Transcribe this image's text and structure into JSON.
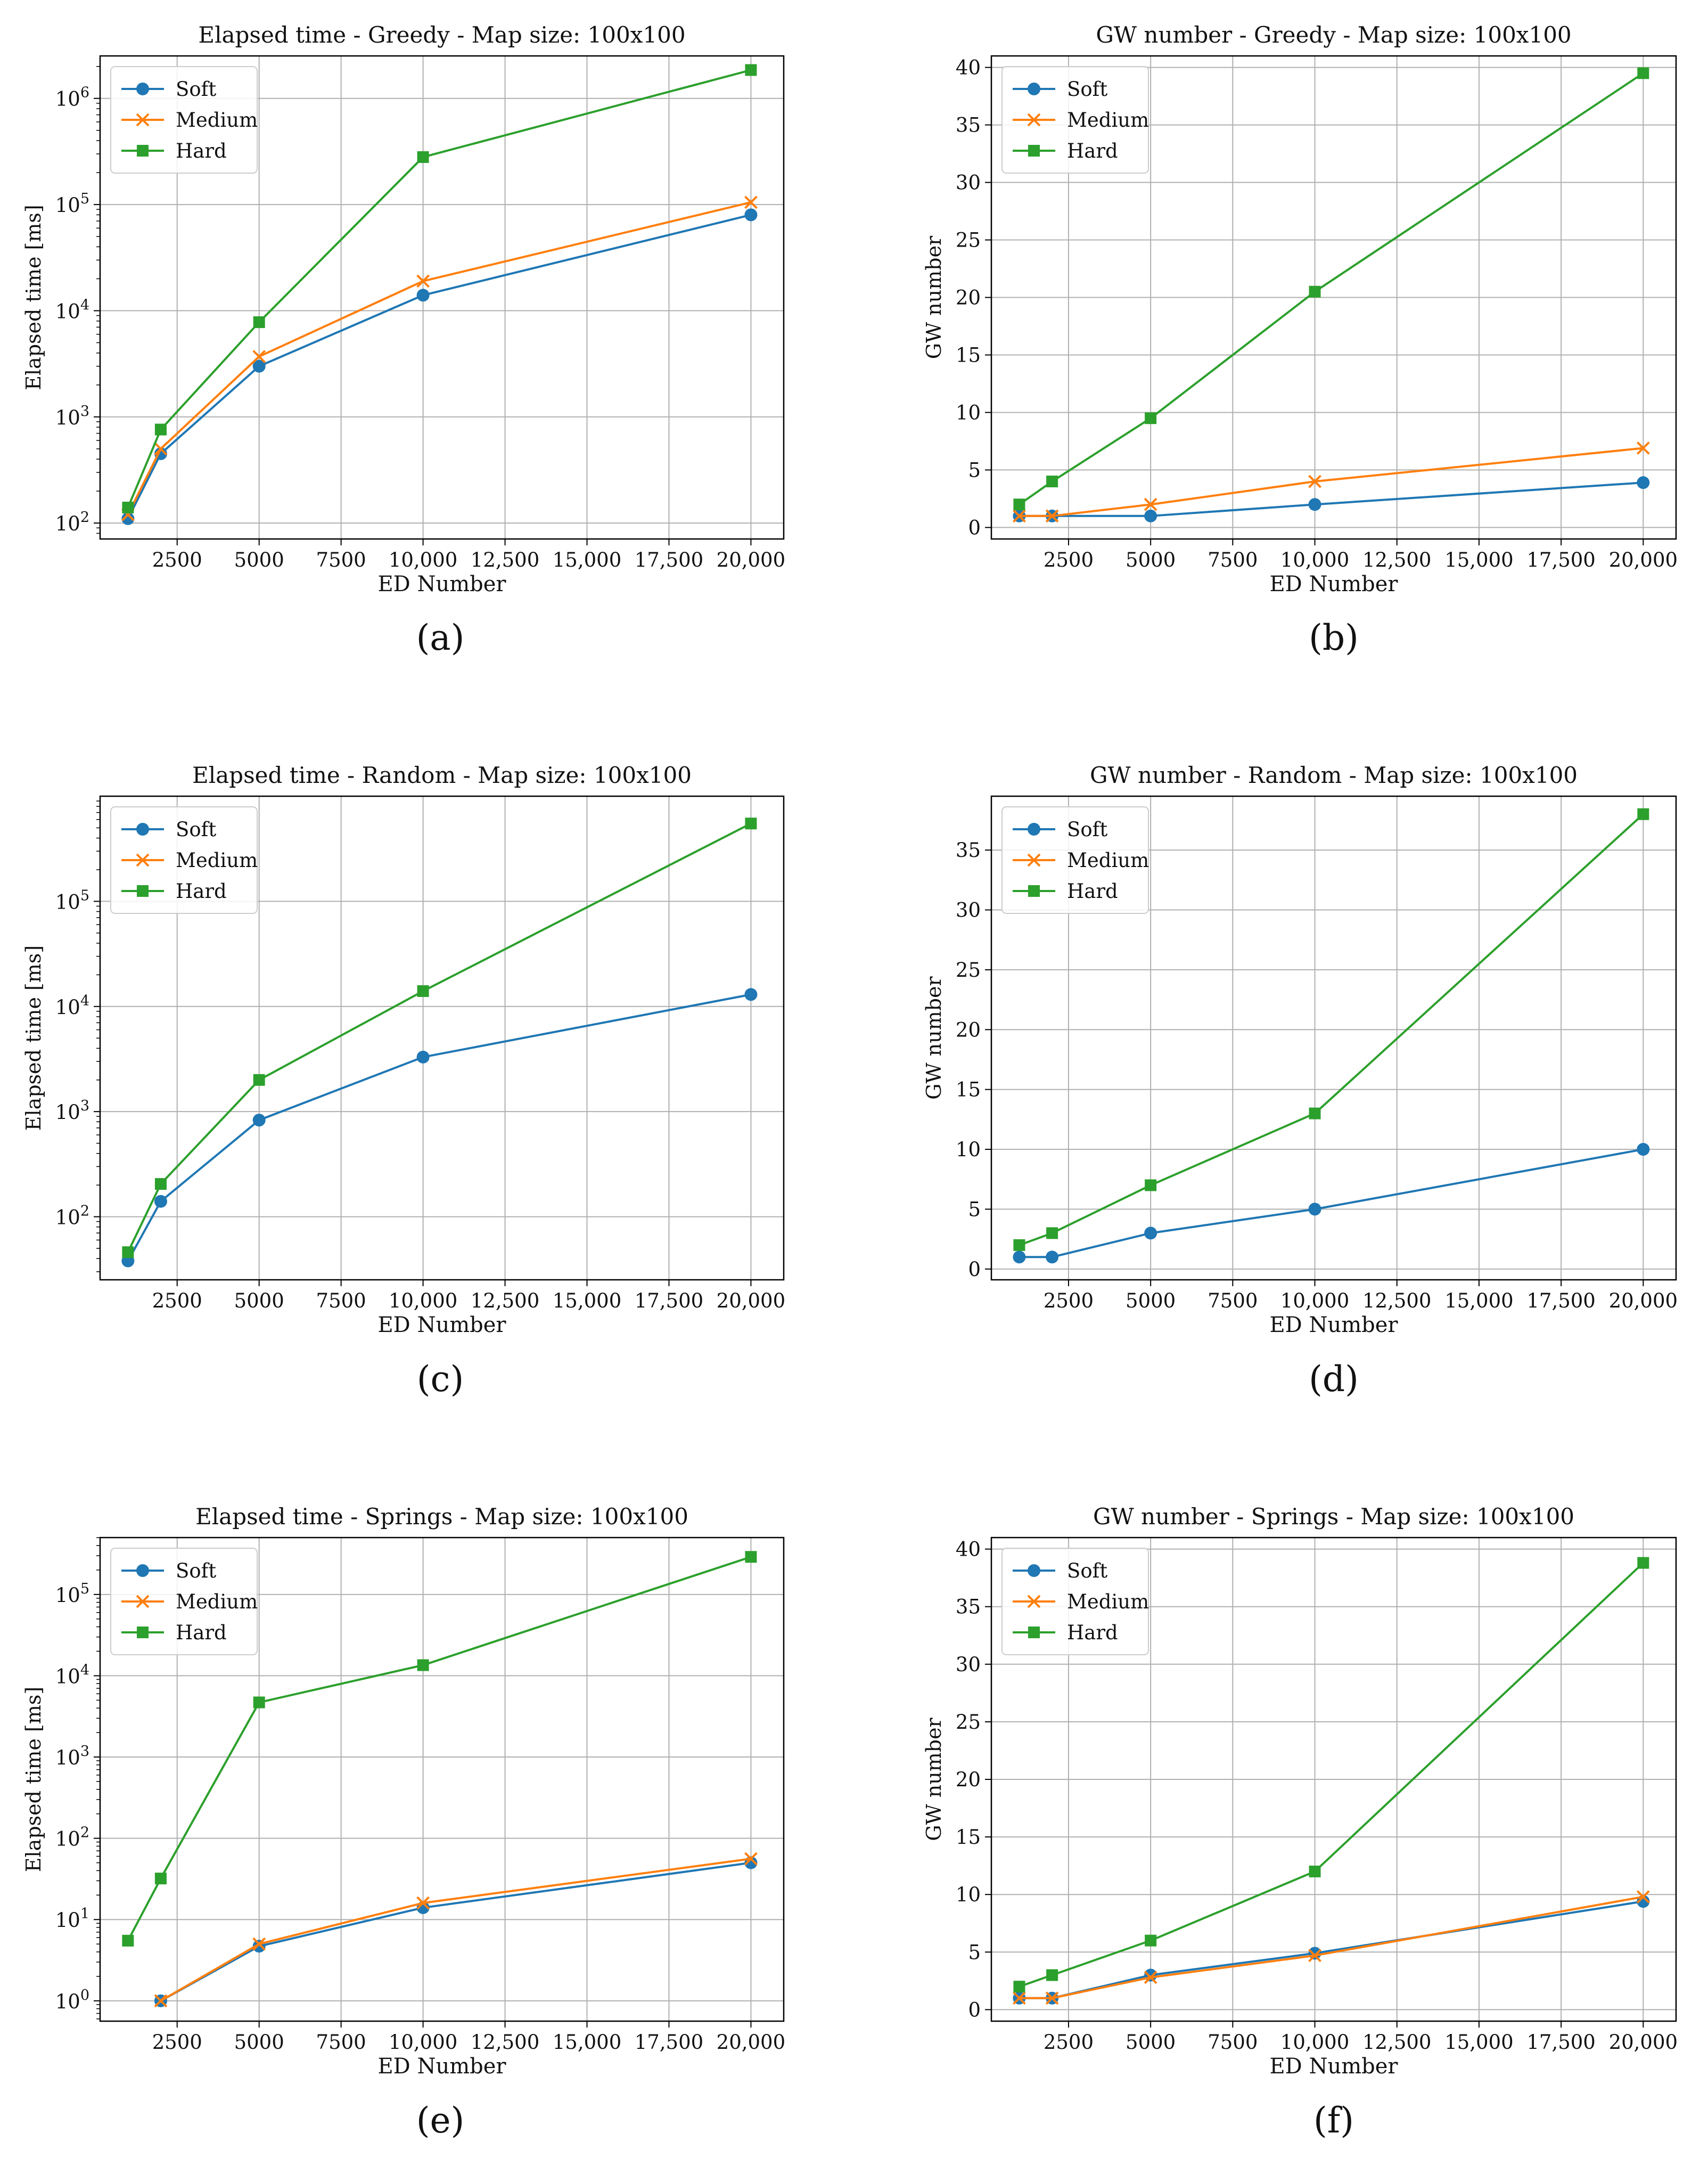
{
  "figure": {
    "panel_captions": [
      "(a)",
      "(b)",
      "(c)",
      "(d)",
      "(e)",
      "(f)"
    ]
  },
  "colors": {
    "soft": "#1f77b4",
    "medium": "#ff7f0e",
    "hard": "#2ca02c",
    "grid": "#b0b0b0",
    "axis": "#000000"
  },
  "chart_data": [
    {
      "type": "line",
      "title": "Elapsed time - Greedy - Map size: 100x100",
      "xlabel": "ED Number",
      "ylabel": "Elapsed time [ms]",
      "yscale": "log",
      "xlim": [
        150,
        21000
      ],
      "ylim_exp": [
        1.85,
        6.4
      ],
      "xticks": [
        2500,
        5000,
        7500,
        10000,
        12500,
        15000,
        17500,
        20000
      ],
      "xtick_labels": [
        "2500",
        "5000",
        "7500",
        "10,000",
        "12,500",
        "15,000",
        "17,500",
        "20,000"
      ],
      "yticks": [
        2,
        3,
        4,
        5,
        6
      ],
      "legend": "top-left",
      "x": [
        1000,
        2000,
        5000,
        10000,
        20000
      ],
      "series": [
        {
          "name": "Soft",
          "marker": "circle",
          "values": [
            110,
            450,
            3000,
            14000,
            80000
          ]
        },
        {
          "name": "Medium",
          "marker": "x",
          "values": [
            120,
            500,
            3700,
            19000,
            105000
          ]
        },
        {
          "name": "Hard",
          "marker": "square",
          "values": [
            140,
            760,
            7800,
            280000,
            1850000
          ]
        }
      ]
    },
    {
      "type": "line",
      "title": "GW number - Greedy - Map size: 100x100",
      "xlabel": "ED Number",
      "ylabel": "GW number",
      "yscale": "linear",
      "xlim": [
        150,
        21000
      ],
      "ylim": [
        -1,
        41
      ],
      "xticks": [
        2500,
        5000,
        7500,
        10000,
        12500,
        15000,
        17500,
        20000
      ],
      "xtick_labels": [
        "2500",
        "5000",
        "7500",
        "10,000",
        "12,500",
        "15,000",
        "17,500",
        "20,000"
      ],
      "yticks": [
        0,
        5,
        10,
        15,
        20,
        25,
        30,
        35,
        40
      ],
      "legend": "top-left",
      "x": [
        1000,
        2000,
        5000,
        10000,
        20000
      ],
      "series": [
        {
          "name": "Soft",
          "marker": "circle",
          "values": [
            1,
            1,
            1,
            2,
            3.9
          ]
        },
        {
          "name": "Medium",
          "marker": "x",
          "values": [
            1,
            1,
            2,
            4,
            6.9
          ]
        },
        {
          "name": "Hard",
          "marker": "square",
          "values": [
            2,
            4,
            9.5,
            20.5,
            39.5
          ]
        }
      ]
    },
    {
      "type": "line",
      "title": "Elapsed time - Random - Map size: 100x100",
      "xlabel": "ED Number",
      "ylabel": "Elapsed time [ms]",
      "yscale": "log",
      "xlim": [
        150,
        21000
      ],
      "ylim_exp": [
        1.4,
        6.0
      ],
      "xticks": [
        2500,
        5000,
        7500,
        10000,
        12500,
        15000,
        17500,
        20000
      ],
      "xtick_labels": [
        "2500",
        "5000",
        "7500",
        "10,000",
        "12,500",
        "15,000",
        "17,500",
        "20,000"
      ],
      "yticks": [
        2,
        3,
        4,
        5
      ],
      "legend": "top-left",
      "x": [
        1000,
        2000,
        5000,
        10000,
        20000
      ],
      "series": [
        {
          "name": "Soft",
          "marker": "circle",
          "values": [
            38,
            140,
            830,
            3300,
            13000
          ]
        },
        {
          "name": "Medium",
          "marker": "x",
          "values": [
            null,
            null,
            null,
            null,
            null
          ]
        },
        {
          "name": "Hard",
          "marker": "square",
          "values": [
            46,
            205,
            2000,
            14000,
            550000
          ]
        }
      ]
    },
    {
      "type": "line",
      "title": "GW number - Random - Map size: 100x100",
      "xlabel": "ED Number",
      "ylabel": "GW number",
      "yscale": "linear",
      "xlim": [
        150,
        21000
      ],
      "ylim": [
        -0.9,
        39.5
      ],
      "xticks": [
        2500,
        5000,
        7500,
        10000,
        12500,
        15000,
        17500,
        20000
      ],
      "xtick_labels": [
        "2500",
        "5000",
        "7500",
        "10,000",
        "12,500",
        "15,000",
        "17,500",
        "20,000"
      ],
      "yticks": [
        0,
        5,
        10,
        15,
        20,
        25,
        30,
        35
      ],
      "legend": "top-left",
      "x": [
        1000,
        2000,
        5000,
        10000,
        20000
      ],
      "series": [
        {
          "name": "Soft",
          "marker": "circle",
          "values": [
            1,
            1,
            3,
            5,
            10
          ]
        },
        {
          "name": "Medium",
          "marker": "x",
          "values": [
            null,
            null,
            null,
            null,
            null
          ]
        },
        {
          "name": "Hard",
          "marker": "square",
          "values": [
            2,
            3,
            7,
            13,
            38
          ]
        }
      ]
    },
    {
      "type": "line",
      "title": "Elapsed time - Springs - Map size: 100x100",
      "xlabel": "ED Number",
      "ylabel": "Elapsed time [ms]",
      "yscale": "log",
      "xlim": [
        150,
        21000
      ],
      "ylim_exp": [
        -0.25,
        5.7
      ],
      "xticks": [
        2500,
        5000,
        7500,
        10000,
        12500,
        15000,
        17500,
        20000
      ],
      "xtick_labels": [
        "2500",
        "5000",
        "7500",
        "10,000",
        "12,500",
        "15,000",
        "17,500",
        "20,000"
      ],
      "yticks": [
        0,
        1,
        2,
        3,
        4,
        5
      ],
      "legend": "top-left",
      "x": [
        1000,
        2000,
        5000,
        10000,
        20000
      ],
      "series": [
        {
          "name": "Soft",
          "marker": "circle",
          "values": [
            null,
            1,
            4.7,
            14,
            50
          ]
        },
        {
          "name": "Medium",
          "marker": "x",
          "values": [
            null,
            1,
            5,
            16,
            56
          ]
        },
        {
          "name": "Hard",
          "marker": "square",
          "values": [
            5.5,
            32,
            4700,
            13500,
            290000
          ]
        }
      ]
    },
    {
      "type": "line",
      "title": "GW number - Springs - Map size: 100x100",
      "xlabel": "ED Number",
      "ylabel": "GW number",
      "yscale": "linear",
      "xlim": [
        150,
        21000
      ],
      "ylim": [
        -1,
        41
      ],
      "xticks": [
        2500,
        5000,
        7500,
        10000,
        12500,
        15000,
        17500,
        20000
      ],
      "xtick_labels": [
        "2500",
        "5000",
        "7500",
        "10,000",
        "12,500",
        "15,000",
        "17,500",
        "20,000"
      ],
      "yticks": [
        0,
        5,
        10,
        15,
        20,
        25,
        30,
        35,
        40
      ],
      "legend": "top-left",
      "x": [
        1000,
        2000,
        5000,
        10000,
        20000
      ],
      "series": [
        {
          "name": "Soft",
          "marker": "circle",
          "values": [
            1,
            1,
            3,
            4.9,
            9.4
          ]
        },
        {
          "name": "Medium",
          "marker": "x",
          "values": [
            1,
            1,
            2.8,
            4.7,
            9.8
          ]
        },
        {
          "name": "Hard",
          "marker": "square",
          "values": [
            2,
            3,
            6,
            12,
            38.8
          ]
        }
      ]
    }
  ]
}
